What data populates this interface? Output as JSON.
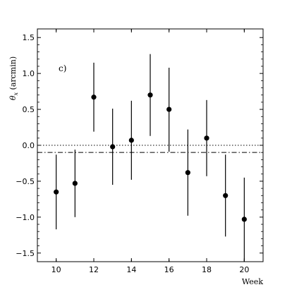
{
  "chart_data": {
    "type": "scatter",
    "xlabel": "Week",
    "ylabel": "θ_x (arcmin)",
    "panel_label": "c)",
    "xlim": [
      9,
      21
    ],
    "ylim": [
      -1.62,
      1.62
    ],
    "xticks": [
      10,
      12,
      14,
      16,
      18,
      20
    ],
    "yticks": [
      1.5,
      1.0,
      0.5,
      0.0,
      -0.5,
      -1.0,
      -1.5
    ],
    "ytick_labels": [
      "1.5",
      "1.0",
      "0.5",
      "0.0",
      "−0.5",
      "−1.0",
      "−1.5"
    ],
    "series": [
      {
        "x": [
          10,
          11,
          12,
          13,
          14,
          15,
          16,
          17,
          18,
          19,
          20
        ],
        "y": [
          -0.65,
          -0.53,
          0.67,
          -0.02,
          0.07,
          0.7,
          0.5,
          -0.38,
          0.1,
          -0.7,
          -1.03
        ],
        "err_low": [
          0.52,
          0.47,
          0.48,
          0.53,
          0.55,
          0.57,
          0.59,
          0.6,
          0.53,
          0.57,
          0.6
        ],
        "err_high": [
          0.52,
          0.47,
          0.48,
          0.53,
          0.55,
          0.57,
          0.58,
          0.6,
          0.53,
          0.57,
          0.58
        ]
      }
    ],
    "reference_lines": [
      {
        "y": 0.0,
        "style": "dotted"
      },
      {
        "y": -0.1,
        "style": "dash-dot"
      }
    ],
    "grid": false
  }
}
